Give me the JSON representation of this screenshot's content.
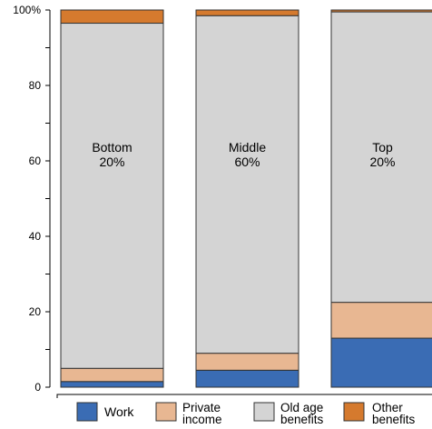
{
  "chart_data": {
    "type": "bar",
    "stacked": true,
    "categories": [
      "Bottom 20%",
      "Middle 60%",
      "Top 20%"
    ],
    "bar_labels": [
      {
        "line1": "Bottom",
        "line2": "20%"
      },
      {
        "line1": "Middle",
        "line2": "60%"
      },
      {
        "line1": "Top",
        "line2": "20%"
      }
    ],
    "series": [
      {
        "name": "Work",
        "color": "#3a6cb4",
        "values": [
          1.5,
          4.5,
          13
        ]
      },
      {
        "name": "Private income",
        "color": "#e8b792",
        "values": [
          3.5,
          4.5,
          9.5
        ]
      },
      {
        "name": "Old age benefits",
        "color": "#d4d4d4",
        "values": [
          91.5,
          89.5,
          77
        ]
      },
      {
        "name": "Other benefits",
        "color": "#d57a2e",
        "values": [
          3.5,
          1.5,
          0.5
        ]
      }
    ],
    "ylim": [
      0,
      100
    ],
    "yticks": [
      {
        "value": 0,
        "label": "0"
      },
      {
        "value": 20,
        "label": "20"
      },
      {
        "value": 40,
        "label": "40"
      },
      {
        "value": 60,
        "label": "60"
      },
      {
        "value": 80,
        "label": "80"
      },
      {
        "value": 100,
        "label": "100%"
      }
    ],
    "legend": [
      {
        "series": "Work",
        "lines": [
          "Work"
        ]
      },
      {
        "series": "Private income",
        "lines": [
          "Private",
          "income"
        ]
      },
      {
        "series": "Old age benefits",
        "lines": [
          "Old age",
          "benefits"
        ]
      },
      {
        "series": "Other benefits",
        "lines": [
          "Other",
          "benefits"
        ]
      }
    ],
    "legend_position": "bottom",
    "grid": false
  }
}
